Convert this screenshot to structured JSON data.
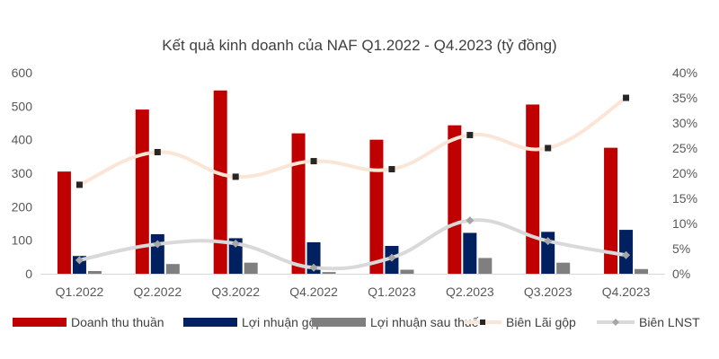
{
  "chart_data": {
    "type": "bar",
    "title": "Kết quả kinh doanh của NAF Q1.2022 - Q4.2023 (tỷ đồng)",
    "categories": [
      "Q1.2022",
      "Q2.2022",
      "Q3.2022",
      "Q4.2022",
      "Q1.2023",
      "Q2.2023",
      "Q3.2023",
      "Q4.2023"
    ],
    "y_left": {
      "min": 0,
      "max": 600,
      "ticks": [
        "0",
        "100",
        "200",
        "300",
        "400",
        "500",
        "600"
      ]
    },
    "y_right": {
      "min": 0,
      "max": 0.4,
      "ticks": [
        "0%",
        "5%",
        "10%",
        "15%",
        "20%",
        "25%",
        "30%",
        "35%",
        "40%"
      ]
    },
    "series": [
      {
        "name": "Doanh thu thuần",
        "kind": "bar",
        "axis": "left",
        "color": "#C00000",
        "values": [
          305,
          490,
          547,
          419,
          400,
          443,
          505,
          376
        ]
      },
      {
        "name": "Lợi nhuận gộp",
        "kind": "bar",
        "axis": "left",
        "color": "#002060",
        "values": [
          53,
          118,
          106,
          94,
          83,
          122,
          125,
          131
        ]
      },
      {
        "name": "Lợi nhuận sau thuế",
        "kind": "bar",
        "axis": "left",
        "color": "#7F7F7F",
        "values": [
          8,
          29,
          33,
          5,
          12,
          47,
          33,
          14
        ]
      },
      {
        "name": "Biên Lãi gộp",
        "kind": "line",
        "axis": "right",
        "color": "#FBE5D6",
        "marker_color": "#262626",
        "values": [
          0.177,
          0.242,
          0.193,
          0.224,
          0.208,
          0.276,
          0.25,
          0.35
        ]
      },
      {
        "name": "Biên LNST",
        "kind": "line",
        "axis": "right",
        "color": "#D9D9D9",
        "marker_color": "#A6A6A6",
        "values": [
          0.027,
          0.059,
          0.06,
          0.012,
          0.032,
          0.106,
          0.065,
          0.037
        ]
      }
    ],
    "grid": false,
    "legend_position": "bottom"
  }
}
